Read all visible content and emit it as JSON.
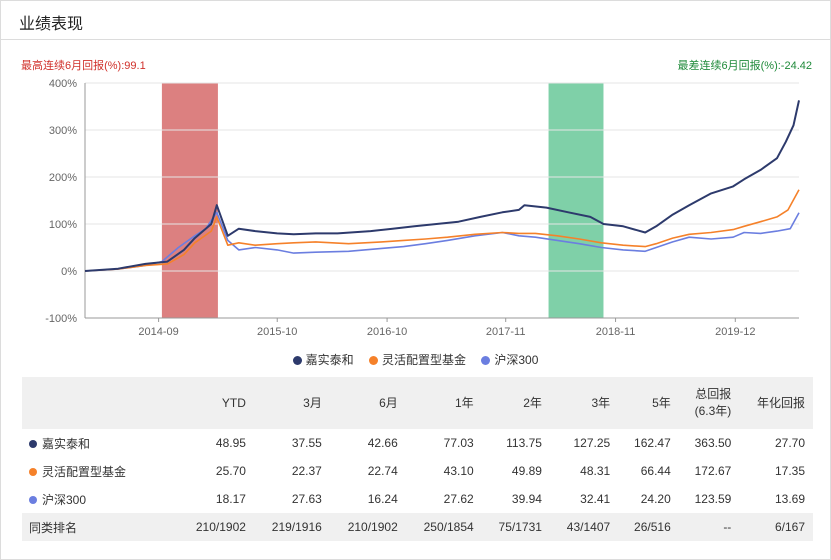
{
  "header": {
    "title": "业绩表现"
  },
  "best6m": {
    "label": "最高连续6月回报(%):",
    "value": "99.1"
  },
  "worst6m": {
    "label": "最差连续6月回报(%):",
    "value": "-24.42"
  },
  "colors": {
    "fund": "#2d3a6c",
    "category": "#f5812a",
    "index": "#6b7ee0",
    "best_band": "#dc8080",
    "worst_band": "#7fd0a8",
    "best_text": "#d0302a",
    "worst_text": "#1f8a3a"
  },
  "chart_data": {
    "type": "line",
    "ylim": [
      -100,
      400
    ],
    "y_ticks": [
      "400%",
      "300%",
      "200%",
      "100%",
      "0%",
      "-100%"
    ],
    "x_ticks": [
      {
        "label": "2014-09",
        "t": 2014.67
      },
      {
        "label": "2015-10",
        "t": 2015.75
      },
      {
        "label": "2016-10",
        "t": 2016.75
      },
      {
        "label": "2017-11",
        "t": 2017.83
      },
      {
        "label": "2018-11",
        "t": 2018.83
      },
      {
        "label": "2019-12",
        "t": 2019.92
      }
    ],
    "x_range": [
      2014.0,
      2020.5
    ],
    "bands": [
      {
        "name": "best",
        "start": 2014.7,
        "end": 2015.21
      },
      {
        "name": "worst",
        "start": 2018.22,
        "end": 2018.72
      }
    ],
    "series": [
      {
        "name": "嘉实泰和",
        "points": [
          [
            2014.0,
            0
          ],
          [
            2014.3,
            5
          ],
          [
            2014.55,
            15
          ],
          [
            2014.75,
            20
          ],
          [
            2014.9,
            45
          ],
          [
            2015.0,
            70
          ],
          [
            2015.15,
            100
          ],
          [
            2015.2,
            140
          ],
          [
            2015.3,
            75
          ],
          [
            2015.4,
            90
          ],
          [
            2015.55,
            85
          ],
          [
            2015.75,
            80
          ],
          [
            2015.9,
            78
          ],
          [
            2016.1,
            80
          ],
          [
            2016.3,
            80
          ],
          [
            2016.6,
            85
          ],
          [
            2016.8,
            90
          ],
          [
            2017.0,
            95
          ],
          [
            2017.2,
            100
          ],
          [
            2017.4,
            105
          ],
          [
            2017.6,
            115
          ],
          [
            2017.8,
            125
          ],
          [
            2017.95,
            130
          ],
          [
            2018.0,
            140
          ],
          [
            2018.2,
            135
          ],
          [
            2018.4,
            125
          ],
          [
            2018.6,
            115
          ],
          [
            2018.72,
            100
          ],
          [
            2018.9,
            95
          ],
          [
            2019.1,
            82
          ],
          [
            2019.2,
            95
          ],
          [
            2019.35,
            120
          ],
          [
            2019.5,
            140
          ],
          [
            2019.7,
            165
          ],
          [
            2019.9,
            180
          ],
          [
            2020.0,
            195
          ],
          [
            2020.15,
            215
          ],
          [
            2020.3,
            240
          ],
          [
            2020.38,
            275
          ],
          [
            2020.45,
            310
          ],
          [
            2020.5,
            363
          ]
        ]
      },
      {
        "name": "灵活配置型基金",
        "points": [
          [
            2014.0,
            0
          ],
          [
            2014.3,
            4
          ],
          [
            2014.55,
            12
          ],
          [
            2014.75,
            15
          ],
          [
            2014.9,
            35
          ],
          [
            2015.0,
            60
          ],
          [
            2015.15,
            85
          ],
          [
            2015.2,
            115
          ],
          [
            2015.3,
            55
          ],
          [
            2015.4,
            60
          ],
          [
            2015.55,
            55
          ],
          [
            2015.75,
            58
          ],
          [
            2015.9,
            60
          ],
          [
            2016.1,
            62
          ],
          [
            2016.4,
            58
          ],
          [
            2016.7,
            62
          ],
          [
            2016.9,
            65
          ],
          [
            2017.1,
            68
          ],
          [
            2017.3,
            72
          ],
          [
            2017.55,
            78
          ],
          [
            2017.8,
            82
          ],
          [
            2017.95,
            80
          ],
          [
            2018.1,
            80
          ],
          [
            2018.3,
            75
          ],
          [
            2018.5,
            68
          ],
          [
            2018.7,
            60
          ],
          [
            2018.9,
            55
          ],
          [
            2019.1,
            52
          ],
          [
            2019.2,
            58
          ],
          [
            2019.35,
            70
          ],
          [
            2019.5,
            78
          ],
          [
            2019.7,
            82
          ],
          [
            2019.9,
            88
          ],
          [
            2020.0,
            95
          ],
          [
            2020.15,
            105
          ],
          [
            2020.3,
            115
          ],
          [
            2020.4,
            130
          ],
          [
            2020.5,
            173
          ]
        ]
      },
      {
        "name": "沪深300",
        "points": [
          [
            2014.0,
            0
          ],
          [
            2014.3,
            4
          ],
          [
            2014.55,
            12
          ],
          [
            2014.7,
            20
          ],
          [
            2014.85,
            50
          ],
          [
            2015.0,
            75
          ],
          [
            2015.1,
            90
          ],
          [
            2015.2,
            125
          ],
          [
            2015.3,
            65
          ],
          [
            2015.4,
            45
          ],
          [
            2015.55,
            50
          ],
          [
            2015.75,
            45
          ],
          [
            2015.9,
            38
          ],
          [
            2016.1,
            40
          ],
          [
            2016.4,
            42
          ],
          [
            2016.7,
            48
          ],
          [
            2016.9,
            52
          ],
          [
            2017.1,
            58
          ],
          [
            2017.3,
            65
          ],
          [
            2017.55,
            75
          ],
          [
            2017.8,
            82
          ],
          [
            2017.95,
            75
          ],
          [
            2018.1,
            72
          ],
          [
            2018.3,
            65
          ],
          [
            2018.5,
            58
          ],
          [
            2018.7,
            50
          ],
          [
            2018.9,
            45
          ],
          [
            2019.1,
            42
          ],
          [
            2019.2,
            50
          ],
          [
            2019.35,
            62
          ],
          [
            2019.5,
            72
          ],
          [
            2019.7,
            68
          ],
          [
            2019.9,
            72
          ],
          [
            2020.0,
            82
          ],
          [
            2020.15,
            80
          ],
          [
            2020.3,
            85
          ],
          [
            2020.42,
            90
          ],
          [
            2020.5,
            124
          ]
        ]
      }
    ]
  },
  "table": {
    "headers": [
      "",
      "YTD",
      "3月",
      "6月",
      "1年",
      "2年",
      "3年",
      "5年",
      "总回报\n(6.3年)",
      "年化回报"
    ],
    "rows": [
      {
        "name": "嘉实泰和",
        "dot": "#2d3a6c",
        "values": [
          "48.95",
          "37.55",
          "42.66",
          "77.03",
          "113.75",
          "127.25",
          "162.47",
          "363.50",
          "27.70"
        ]
      },
      {
        "name": "灵活配置型基金",
        "dot": "#f5812a",
        "values": [
          "25.70",
          "22.37",
          "22.74",
          "43.10",
          "49.89",
          "48.31",
          "66.44",
          "172.67",
          "17.35"
        ]
      },
      {
        "name": "沪深300",
        "dot": "#6b7ee0",
        "values": [
          "18.17",
          "27.63",
          "16.24",
          "27.62",
          "39.94",
          "32.41",
          "24.20",
          "123.59",
          "13.69"
        ]
      }
    ],
    "rank": {
      "name": "同类排名",
      "values": [
        "210/1902",
        "219/1916",
        "210/1902",
        "250/1854",
        "75/1731",
        "43/1407",
        "26/516",
        "--",
        "6/167"
      ]
    }
  }
}
